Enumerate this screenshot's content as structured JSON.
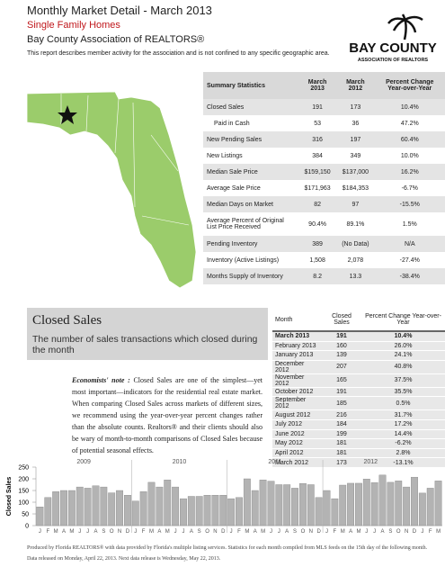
{
  "header": {
    "title": "Monthly Market Detail - March 2013",
    "subtitle": "Single Family Homes",
    "association": "Bay County Association of REALTORS®",
    "description": "This report describes member activity for the association and is not confined to any specific geographic area."
  },
  "logo": {
    "line1": "BAY COUNTY",
    "line2": "ASSOCIATION OF REALTORS"
  },
  "summary": {
    "columns": [
      "Summary Statistics",
      "March 2013",
      "March 2012",
      "Percent Change Year-over-Year"
    ],
    "rows": [
      [
        "Closed Sales",
        "191",
        "173",
        "10.4%"
      ],
      [
        "Paid in Cash",
        "53",
        "36",
        "47.2%"
      ],
      [
        "New Pending Sales",
        "316",
        "197",
        "60.4%"
      ],
      [
        "New Listings",
        "384",
        "349",
        "10.0%"
      ],
      [
        "Median Sale Price",
        "$159,150",
        "$137,000",
        "16.2%"
      ],
      [
        "Average Sale Price",
        "$171,963",
        "$184,353",
        "-6.7%"
      ],
      [
        "Median Days on Market",
        "82",
        "97",
        "-15.5%"
      ],
      [
        "Average Percent of Original List Price Received",
        "90.4%",
        "89.1%",
        "1.5%"
      ],
      [
        "Pending Inventory",
        "389",
        "(No Data)",
        "N/A"
      ],
      [
        "Inventory (Active Listings)",
        "1,508",
        "2,078",
        "-27.4%"
      ],
      [
        "Months Supply of Inventory",
        "8.2",
        "13.3",
        "-38.4%"
      ]
    ]
  },
  "closed_sales": {
    "title": "Closed Sales",
    "subtitle": "The number of sales transactions which closed during the month",
    "note_label": "Economists' note :",
    "note": "Closed Sales are one of the simplest—yet most important—indicators for the residential real estate market. When comparing Closed Sales across markets of different sizes, we recommend using the year-over-year percent changes rather than the absolute counts. Realtors® and their clients should also be wary of month-to-month comparisons of Closed Sales because of potential seasonal effects.",
    "table": {
      "columns": [
        "Month",
        "Closed Sales",
        "Percent Change Year-over-Year"
      ],
      "rows": [
        [
          "March 2013",
          "191",
          "10.4%"
        ],
        [
          "February 2013",
          "160",
          "26.0%"
        ],
        [
          "January 2013",
          "139",
          "24.1%"
        ],
        [
          "December 2012",
          "207",
          "40.8%"
        ],
        [
          "November 2012",
          "165",
          "37.5%"
        ],
        [
          "October 2012",
          "191",
          "35.5%"
        ],
        [
          "September 2012",
          "185",
          "0.5%"
        ],
        [
          "August 2012",
          "216",
          "31.7%"
        ],
        [
          "July 2012",
          "184",
          "17.2%"
        ],
        [
          "June 2012",
          "199",
          "14.4%"
        ],
        [
          "May 2012",
          "181",
          "-6.2%"
        ],
        [
          "April 2012",
          "181",
          "2.8%"
        ],
        [
          "March 2012",
          "173",
          "-13.1%"
        ]
      ]
    }
  },
  "chart_data": {
    "type": "bar",
    "y_label": "Closed Sales",
    "color": "#b3b3b3",
    "categories": [
      "J",
      "F",
      "M",
      "A",
      "M",
      "J",
      "J",
      "A",
      "S",
      "O",
      "N",
      "D",
      "J",
      "F",
      "M",
      "A",
      "M",
      "J",
      "J",
      "A",
      "S",
      "O",
      "N",
      "D",
      "J",
      "F",
      "M",
      "A",
      "M",
      "J",
      "J",
      "A",
      "S",
      "O",
      "N",
      "D",
      "J",
      "F",
      "M",
      "A",
      "M",
      "J",
      "J",
      "A",
      "S",
      "O",
      "N",
      "D",
      "J",
      "F",
      "M"
    ],
    "year_labels": [
      "2009",
      "2010",
      "2011",
      "2012"
    ],
    "values": [
      80,
      120,
      145,
      150,
      150,
      165,
      160,
      170,
      165,
      140,
      150,
      130,
      105,
      145,
      185,
      165,
      195,
      165,
      115,
      125,
      125,
      130,
      130,
      130,
      115,
      120,
      200,
      150,
      195,
      190,
      175,
      175,
      160,
      180,
      175,
      120,
      150,
      115,
      173,
      181,
      181,
      199,
      184,
      216,
      185,
      191,
      165,
      207,
      139,
      160,
      191
    ],
    "ylim": [
      0,
      250
    ],
    "yticks": [
      0,
      50,
      100,
      150,
      200,
      250
    ]
  },
  "footer": {
    "line1": "Produced by Florida REALTORS® with data provided by Florida's multiple listing services. Statistics for each month compiled from MLS feeds on the 15th day of the following month.",
    "line2": "Data released on Monday, April 22, 2013. Next data release is Wednesday, May 22, 2013."
  }
}
